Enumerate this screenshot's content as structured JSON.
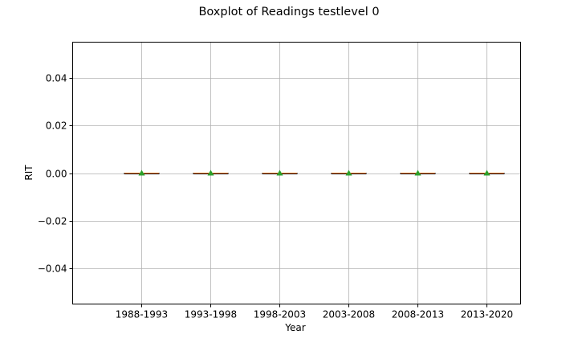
{
  "chart_data": {
    "type": "boxplot",
    "title": "Boxplot of Readings testlevel 0",
    "xlabel": "Year",
    "ylabel": "RIT",
    "categories": [
      "1988-1993",
      "1993-1998",
      "1998-2003",
      "2003-2008",
      "2008-2013",
      "2013-2020"
    ],
    "boxes": [
      {
        "category": "1988-1993",
        "min": 0,
        "q1": 0,
        "median": 0,
        "q3": 0,
        "max": 0,
        "mean": 0
      },
      {
        "category": "1993-1998",
        "min": 0,
        "q1": 0,
        "median": 0,
        "q3": 0,
        "max": 0,
        "mean": 0
      },
      {
        "category": "1998-2003",
        "min": 0,
        "q1": 0,
        "median": 0,
        "q3": 0,
        "max": 0,
        "mean": 0
      },
      {
        "category": "2003-2008",
        "min": 0,
        "q1": 0,
        "median": 0,
        "q3": 0,
        "max": 0,
        "mean": 0
      },
      {
        "category": "2008-2013",
        "min": 0,
        "q1": 0,
        "median": 0,
        "q3": 0,
        "max": 0,
        "mean": 0
      },
      {
        "category": "2013-2020",
        "min": 0,
        "q1": 0,
        "median": 0,
        "q3": 0,
        "max": 0,
        "mean": 0
      }
    ],
    "yticks": [
      "0.04",
      "0.02",
      "0.00",
      "−0.02",
      "−0.04"
    ],
    "ytick_values": [
      0.04,
      0.02,
      0.0,
      -0.02,
      -0.04
    ],
    "ylim": [
      -0.055,
      0.055
    ],
    "x_positions": [
      1,
      2,
      3,
      4,
      5,
      6
    ],
    "xlim": [
      0,
      6.5
    ],
    "grid": true,
    "colors": {
      "median": "#ff7f0e",
      "mean_marker": "#2ca02c",
      "grid": "#b0b0b0",
      "box": "#000000"
    }
  }
}
